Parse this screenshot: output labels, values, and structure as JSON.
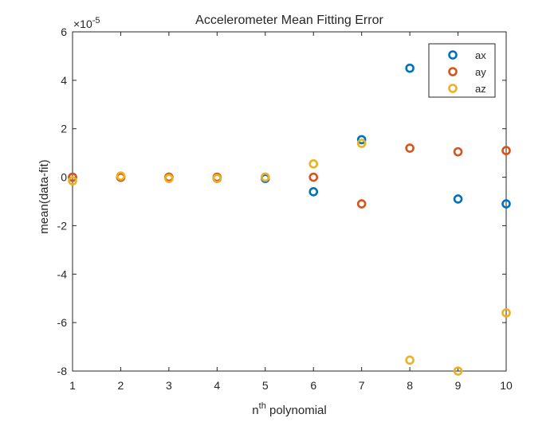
{
  "chart_data": {
    "type": "scatter",
    "title": "Accelerometer Mean Fitting Error",
    "xlabel": {
      "base": "n",
      "superscript": "th",
      "rest": " polynomial"
    },
    "ylabel": "mean(data-fit)",
    "y_exponent": {
      "base": "×10",
      "power": "-5"
    },
    "xlim": [
      1,
      10
    ],
    "ylim": [
      -8,
      6
    ],
    "x_ticks": [
      1,
      2,
      3,
      4,
      5,
      6,
      7,
      8,
      9,
      10
    ],
    "y_ticks": [
      -8,
      -6,
      -4,
      -2,
      0,
      2,
      4,
      6
    ],
    "grid": false,
    "legend_position": "top-right",
    "x": [
      1,
      2,
      3,
      4,
      5,
      6,
      7,
      8,
      9,
      10
    ],
    "series": [
      {
        "name": "ax",
        "color": "#0072BD",
        "values": [
          0.0,
          0.0,
          0.0,
          -0.05,
          -0.05,
          -0.6,
          1.55,
          4.5,
          -0.9,
          -1.1
        ]
      },
      {
        "name": "ay",
        "color": "#D95319",
        "values": [
          0.0,
          0.0,
          0.0,
          0.0,
          0.0,
          0.0,
          -1.1,
          1.2,
          1.05,
          1.1
        ]
      },
      {
        "name": "az",
        "color": "#EDB120",
        "values": [
          -0.15,
          0.05,
          -0.05,
          -0.05,
          0.0,
          0.55,
          1.4,
          -7.55,
          -8.0,
          -5.6
        ]
      }
    ]
  }
}
